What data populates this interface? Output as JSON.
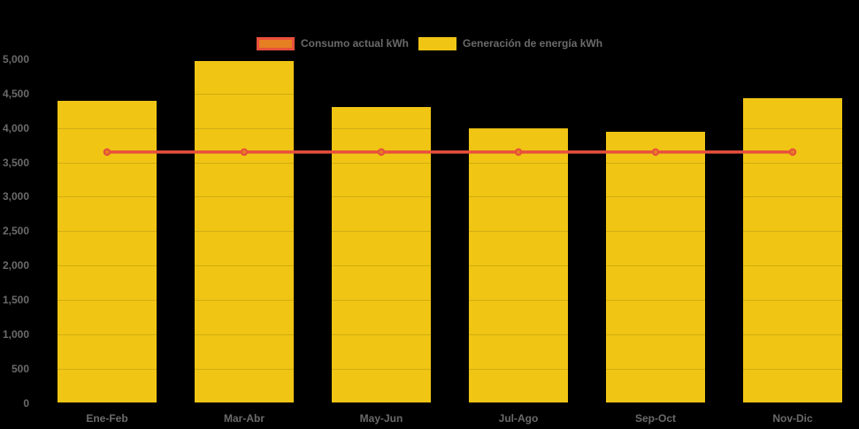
{
  "chart_data": {
    "type": "bar+line",
    "title": "",
    "categories": [
      "Ene-Feb",
      "Mar-Abr",
      "May-Jun",
      "Jul-Ago",
      "Sep-Oct",
      "Nov-Dic"
    ],
    "series": [
      {
        "name": "Generación de energía kWh",
        "type": "bar",
        "color": "#F0C514",
        "values": [
          4400,
          4980,
          4300,
          4000,
          3950,
          4430
        ]
      },
      {
        "name": "Consumo actual kWh",
        "type": "line",
        "color": "#E8503C",
        "marker_fill": "#E67E22",
        "values": [
          3650,
          3650,
          3650,
          3650,
          3650,
          3650
        ]
      }
    ],
    "ylim": [
      0,
      5000
    ],
    "y_tick_step": 500,
    "y_tick_labels": [
      "0",
      "500",
      "1,000",
      "1,500",
      "2,000",
      "2,500",
      "3,000",
      "3,500",
      "4,000",
      "4,500",
      "5,000"
    ],
    "xlabel": "",
    "ylabel": "",
    "grid": true,
    "legend_position": "top-center"
  },
  "legend": [
    {
      "label": "Consumo actual kWh",
      "swatch_fill": "#E67E22",
      "swatch_border": "#E8503C"
    },
    {
      "label": "Generación de energía kWh",
      "swatch_fill": "#F0C514",
      "swatch_border": "#F0C514"
    }
  ],
  "colors": {
    "background": "#000000",
    "text": "#6A6A6A",
    "grid": "rgba(0,0,0,0.12)"
  }
}
